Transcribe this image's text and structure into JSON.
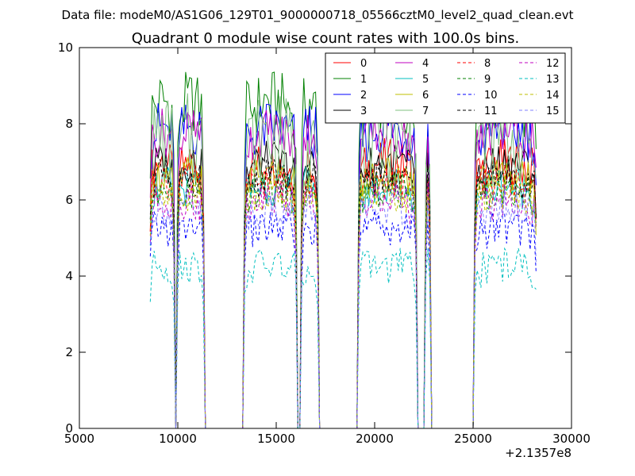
{
  "chart_data": {
    "type": "line",
    "supertitle": "Data file: modeM0/AS1G06_129T01_9000000718_05566cztM0_level2_quad_clean.evt",
    "title": "Quadrant 0 module wise count rates with 100.0s bins.",
    "xlabel": "",
    "ylabel": "",
    "x_offset_label": "+2.1357e8",
    "xlim": [
      5000,
      30000
    ],
    "ylim": [
      0,
      10
    ],
    "x_ticks": [
      "5000",
      "10000",
      "15000",
      "20000",
      "25000",
      "30000"
    ],
    "y_ticks": [
      "0",
      "2",
      "4",
      "6",
      "8",
      "10"
    ],
    "grid": false,
    "legend": {
      "placement": "top-right",
      "columns": 4
    },
    "segments": [
      {
        "start": 8600,
        "end": 9800
      },
      {
        "start": 10000,
        "end": 11300
      },
      {
        "start": 13400,
        "end": 16000
      },
      {
        "start": 16300,
        "end": 17100
      },
      {
        "start": 19200,
        "end": 22100
      },
      {
        "start": 22600,
        "end": 22800
      },
      {
        "start": 25100,
        "end": 28200
      }
    ],
    "x_sample_range": [
      8600,
      28200
    ],
    "x_sample_step": 100,
    "series": [
      {
        "name": "0",
        "color": "#ff0000",
        "style": "solid",
        "level": 7.0,
        "peak": 7.9
      },
      {
        "name": "1",
        "color": "#008000",
        "style": "solid",
        "level": 8.6,
        "peak": 9.8
      },
      {
        "name": "2",
        "color": "#0000ff",
        "style": "solid",
        "level": 7.9,
        "peak": 9.0
      },
      {
        "name": "3",
        "color": "#000000",
        "style": "solid",
        "level": 7.0,
        "peak": 7.8
      },
      {
        "name": "4",
        "color": "#bf00bf",
        "style": "solid",
        "level": 7.8,
        "peak": 8.7
      },
      {
        "name": "5",
        "color": "#00bfbf",
        "style": "solid",
        "level": 6.4,
        "peak": 7.2
      },
      {
        "name": "6",
        "color": "#bfbf00",
        "style": "solid",
        "level": 6.7,
        "peak": 7.4
      },
      {
        "name": "7",
        "color": "#80c080",
        "style": "solid",
        "level": 7.6,
        "peak": 9.4
      },
      {
        "name": "8",
        "color": "#ff0000",
        "style": "dashed",
        "level": 6.5,
        "peak": 7.2
      },
      {
        "name": "9",
        "color": "#008000",
        "style": "dashed",
        "level": 6.3,
        "peak": 7.0
      },
      {
        "name": "10",
        "color": "#0000ff",
        "style": "dashed",
        "level": 5.3,
        "peak": 6.0
      },
      {
        "name": "11",
        "color": "#000000",
        "style": "dashed",
        "level": 6.6,
        "peak": 7.3
      },
      {
        "name": "12",
        "color": "#bf00bf",
        "style": "dashed",
        "level": 6.0,
        "peak": 6.7
      },
      {
        "name": "13",
        "color": "#00bfbf",
        "style": "dashed",
        "level": 4.3,
        "peak": 5.0
      },
      {
        "name": "14",
        "color": "#bfbf00",
        "style": "dashed",
        "level": 6.2,
        "peak": 6.9
      },
      {
        "name": "15",
        "color": "#8080ff",
        "style": "dashed",
        "level": 5.8,
        "peak": 6.5
      }
    ]
  }
}
